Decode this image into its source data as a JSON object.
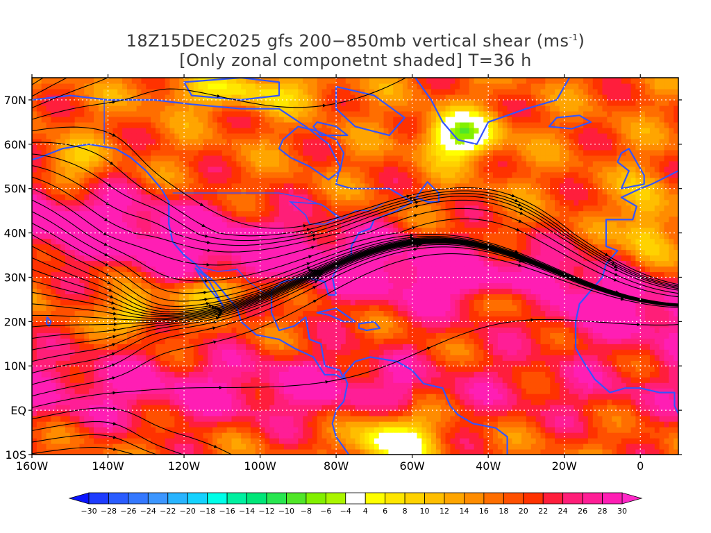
{
  "title": {
    "line1_prefix": "18Z15DEC2025 gfs 200−850mb vertical shear (ms",
    "line1_sup": "-1",
    "line1_suffix": ")",
    "line2": "[Only zonal componetnt shaded] T=36 h"
  },
  "map": {
    "lon_range": [
      -160,
      10
    ],
    "lat_range": [
      -10,
      75
    ],
    "lat_ticks": [
      {
        "value": 70,
        "label": "70N"
      },
      {
        "value": 60,
        "label": "60N"
      },
      {
        "value": 50,
        "label": "50N"
      },
      {
        "value": 40,
        "label": "40N"
      },
      {
        "value": 30,
        "label": "30N"
      },
      {
        "value": 20,
        "label": "20N"
      },
      {
        "value": 10,
        "label": "10N"
      },
      {
        "value": 0,
        "label": "EQ"
      },
      {
        "value": -10,
        "label": "10S"
      }
    ],
    "lon_ticks": [
      {
        "value": -160,
        "label": "160W"
      },
      {
        "value": -140,
        "label": "140W"
      },
      {
        "value": -120,
        "label": "120W"
      },
      {
        "value": -100,
        "label": "100W"
      },
      {
        "value": -80,
        "label": "80W"
      },
      {
        "value": -60,
        "label": "60W"
      },
      {
        "value": -40,
        "label": "40W"
      },
      {
        "value": -20,
        "label": "20W"
      },
      {
        "value": 0,
        "label": "0"
      }
    ],
    "coastline_color": "#3355ff",
    "streamline_color": "#000000",
    "contour_color": "#9900cc"
  },
  "colorbar": {
    "labels": [
      "-30",
      "-28",
      "-26",
      "-24",
      "-22",
      "-20",
      "-18",
      "-16",
      "-14",
      "-12",
      "-10",
      "-8",
      "-6",
      "-4",
      "4",
      "6",
      "8",
      "10",
      "12",
      "14",
      "16",
      "18",
      "20",
      "22",
      "24",
      "26",
      "28",
      "30"
    ],
    "colors": [
      "#1e3cff",
      "#2a5cff",
      "#3478ff",
      "#3c96ff",
      "#28b4ff",
      "#14d2ff",
      "#00ffe8",
      "#00f0a0",
      "#00e678",
      "#28e650",
      "#50e628",
      "#82f000",
      "#aaf500",
      "#ffffff",
      "#ffff00",
      "#ffe600",
      "#ffd200",
      "#ffbe00",
      "#ffa500",
      "#ff8c00",
      "#ff6e00",
      "#ff5000",
      "#ff3200",
      "#ff1e3c",
      "#ff1e78",
      "#ff1e96",
      "#ff1eb4"
    ],
    "low_arrow_color": "#0a14ff",
    "high_arrow_color": "#ff28c8"
  }
}
